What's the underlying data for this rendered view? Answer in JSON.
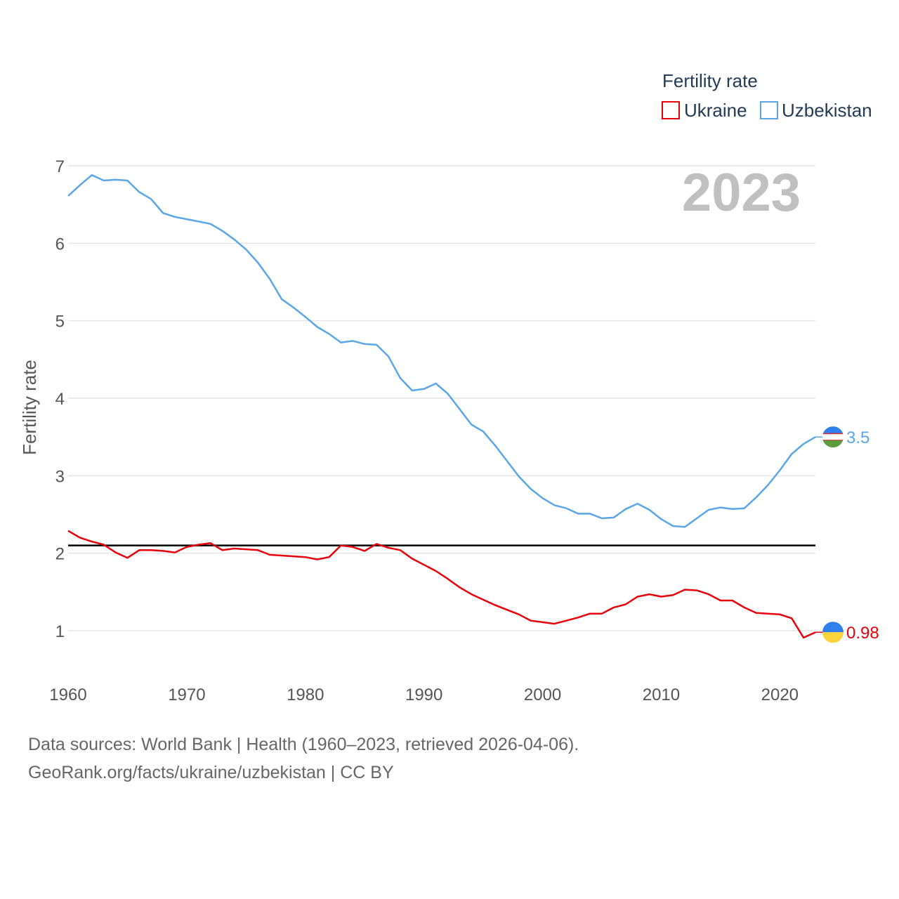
{
  "chart_data": {
    "type": "line",
    "title": "Fertility rate",
    "ylabel": "Fertility rate",
    "xlabel": "",
    "year_label": "2023",
    "xlim": [
      1960,
      2023
    ],
    "ylim": [
      0.5,
      7.2
    ],
    "yticks": [
      1,
      2,
      3,
      4,
      5,
      6,
      7
    ],
    "xticks": [
      1960,
      1970,
      1980,
      1990,
      2000,
      2010,
      2020
    ],
    "reference_line": 2.1,
    "x": [
      1960,
      1961,
      1962,
      1963,
      1964,
      1965,
      1966,
      1967,
      1968,
      1969,
      1970,
      1971,
      1972,
      1973,
      1974,
      1975,
      1976,
      1977,
      1978,
      1979,
      1980,
      1981,
      1982,
      1983,
      1984,
      1985,
      1986,
      1987,
      1988,
      1989,
      1990,
      1991,
      1992,
      1993,
      1994,
      1995,
      1996,
      1997,
      1998,
      1999,
      2000,
      2001,
      2002,
      2003,
      2004,
      2005,
      2006,
      2007,
      2008,
      2009,
      2010,
      2011,
      2012,
      2013,
      2014,
      2015,
      2016,
      2017,
      2018,
      2019,
      2020,
      2021,
      2022,
      2023
    ],
    "series": [
      {
        "name": "Ukraine",
        "color": "#e8000b",
        "end_label": "0.98",
        "values": [
          2.29,
          2.2,
          2.15,
          2.11,
          2.01,
          1.94,
          2.04,
          2.04,
          2.03,
          2.01,
          2.08,
          2.11,
          2.13,
          2.04,
          2.06,
          2.05,
          2.04,
          1.98,
          1.97,
          1.96,
          1.95,
          1.92,
          1.95,
          2.1,
          2.08,
          2.03,
          2.12,
          2.07,
          2.04,
          1.93,
          1.85,
          1.77,
          1.67,
          1.56,
          1.47,
          1.4,
          1.33,
          1.27,
          1.21,
          1.13,
          1.11,
          1.09,
          1.13,
          1.17,
          1.22,
          1.22,
          1.3,
          1.34,
          1.44,
          1.47,
          1.44,
          1.46,
          1.53,
          1.52,
          1.47,
          1.39,
          1.39,
          1.3,
          1.23,
          1.22,
          1.21,
          1.16,
          0.91,
          0.98
        ]
      },
      {
        "name": "Uzbekistan",
        "color": "#5aa6e8",
        "end_label": "3.5",
        "values": [
          6.61,
          6.75,
          6.88,
          6.81,
          6.82,
          6.81,
          6.66,
          6.57,
          6.39,
          6.34,
          6.31,
          6.28,
          6.25,
          6.16,
          6.05,
          5.92,
          5.75,
          5.54,
          5.28,
          5.17,
          5.05,
          4.92,
          4.83,
          4.72,
          4.74,
          4.7,
          4.69,
          4.54,
          4.26,
          4.1,
          4.12,
          4.19,
          4.06,
          3.86,
          3.66,
          3.57,
          3.39,
          3.19,
          2.99,
          2.83,
          2.71,
          2.62,
          2.58,
          2.51,
          2.51,
          2.45,
          2.46,
          2.57,
          2.64,
          2.56,
          2.44,
          2.35,
          2.34,
          2.45,
          2.56,
          2.59,
          2.57,
          2.58,
          2.72,
          2.88,
          3.07,
          3.28,
          3.41,
          3.5
        ]
      }
    ]
  },
  "legend": {
    "title": "Fertility rate",
    "items": [
      "Ukraine",
      "Uzbekistan"
    ]
  },
  "source": {
    "line1": "Data sources: World Bank | Health (1960–2023, retrieved 2026-04-06).",
    "line2": "GeoRank.org/facts/ukraine/uzbekistan | CC BY"
  },
  "colors": {
    "ukraine": "#e8000b",
    "uzbekistan": "#5aa6e8",
    "grid": "#e6e6e6",
    "reference": "#000000",
    "year": "#c0c0c0"
  }
}
